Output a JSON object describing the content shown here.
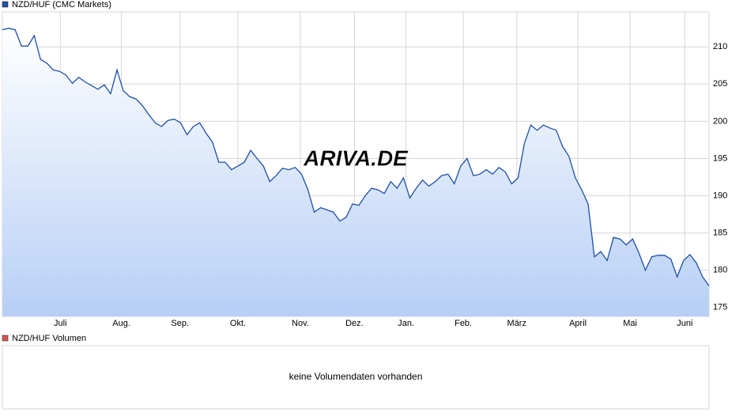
{
  "chart_data": [
    {
      "type": "area",
      "watermark": "ARIVA.DE",
      "series": [
        {
          "name": "NZD/HUF (CMC Markets)",
          "color": "#1d4fa8",
          "values": [
            212.3,
            212.5,
            212.3,
            210.1,
            210.1,
            211.5,
            208.3,
            207.8,
            206.9,
            206.7,
            206.2,
            205.1,
            205.9,
            205.3,
            204.8,
            204.3,
            204.9,
            203.7,
            206.9,
            204.1,
            203.3,
            203.0,
            202.1,
            200.9,
            199.8,
            199.3,
            200.1,
            200.3,
            199.8,
            198.2,
            199.3,
            199.8,
            198.4,
            197.2,
            194.5,
            194.5,
            193.5,
            194.0,
            194.5,
            196.1,
            195.0,
            194.0,
            191.9,
            192.7,
            193.7,
            193.5,
            193.8,
            192.9,
            190.8,
            187.8,
            188.4,
            188.1,
            187.8,
            186.6,
            187.1,
            188.9,
            188.7,
            190.0,
            191.0,
            190.8,
            190.3,
            191.9,
            191.0,
            192.4,
            189.7,
            191.0,
            192.1,
            191.3,
            191.9,
            192.7,
            192.9,
            191.6,
            194.0,
            195.0,
            192.7,
            192.9,
            193.5,
            192.9,
            193.8,
            193.2,
            191.6,
            192.4,
            197.0,
            199.5,
            198.8,
            199.5,
            199.1,
            198.8,
            196.6,
            195.3,
            192.4,
            190.8,
            188.9,
            181.8,
            182.5,
            181.3,
            184.4,
            184.2,
            183.4,
            184.2,
            182.3,
            180.0,
            181.8,
            182.0,
            182.0,
            181.5,
            179.1,
            181.3,
            182.1,
            181.0,
            179.1,
            177.9
          ]
        }
      ],
      "xlim": [
        0,
        111
      ],
      "xticks": [
        {
          "value": 9.1,
          "label": "Juli"
        },
        {
          "value": 18.7,
          "label": "Aug."
        },
        {
          "value": 27.9,
          "label": "Sep."
        },
        {
          "value": 37.0,
          "label": "Okt."
        },
        {
          "value": 46.8,
          "label": "Nov."
        },
        {
          "value": 55.3,
          "label": "Dez."
        },
        {
          "value": 63.4,
          "label": "Jan."
        },
        {
          "value": 72.4,
          "label": "Feb."
        },
        {
          "value": 80.8,
          "label": "März"
        },
        {
          "value": 90.4,
          "label": "April"
        },
        {
          "value": 98.6,
          "label": "Mai"
        },
        {
          "value": 107.2,
          "label": "Juni"
        }
      ],
      "ylim": [
        173.8,
        214.7
      ],
      "yticks": [
        175,
        180,
        185,
        190,
        195,
        200,
        205,
        210
      ],
      "grid": true
    },
    {
      "type": "empty",
      "series": [
        {
          "name": "NZD/HUF Volumen",
          "color": "#d9534f"
        }
      ],
      "message": "keine Volumendaten vorhanden"
    }
  ]
}
